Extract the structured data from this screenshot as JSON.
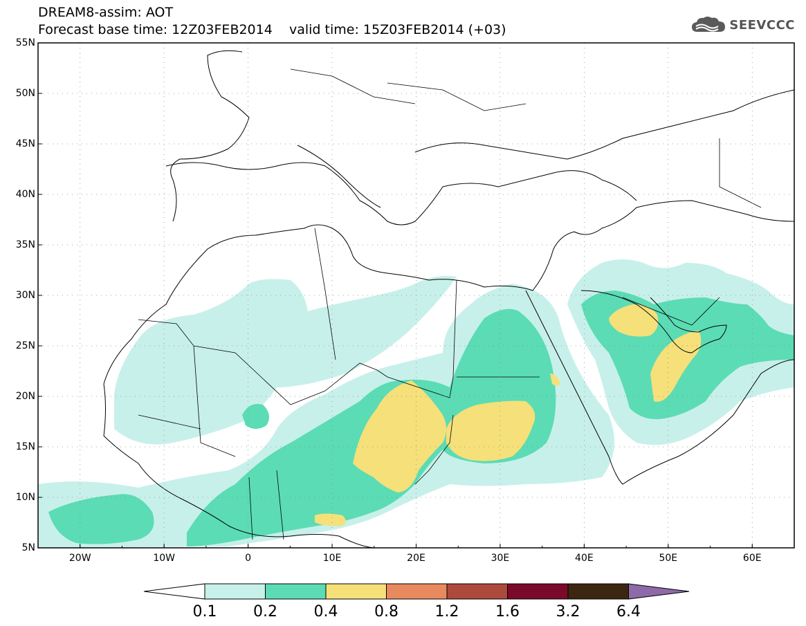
{
  "header": {
    "line1": "DREAM8-assim: AOT",
    "line2": "Forecast base time: 12Z03FEB2014    valid time: 15Z03FEB2014 (+03)"
  },
  "logo": {
    "text": "SEEVCCC",
    "icon": "cloud-icon"
  },
  "map": {
    "lat_labels": [
      "55N",
      "50N",
      "45N",
      "40N",
      "35N",
      "30N",
      "25N",
      "20N",
      "15N",
      "10N",
      "5N"
    ],
    "lon_labels": [
      "20W",
      "10W",
      "0",
      "10E",
      "20E",
      "30E",
      "40E",
      "50E",
      "60E"
    ]
  },
  "colorbar": {
    "labels": [
      "0.1",
      "0.2",
      "0.4",
      "0.8",
      "1.2",
      "1.6",
      "3.2",
      "6.4"
    ],
    "colors": [
      "#ffffff",
      "#c8f0ea",
      "#5bdcb4",
      "#f5e07a",
      "#e98a5e",
      "#ad4a3c",
      "#7a0a2a",
      "#3b2610",
      "#8e6aa8"
    ]
  }
}
